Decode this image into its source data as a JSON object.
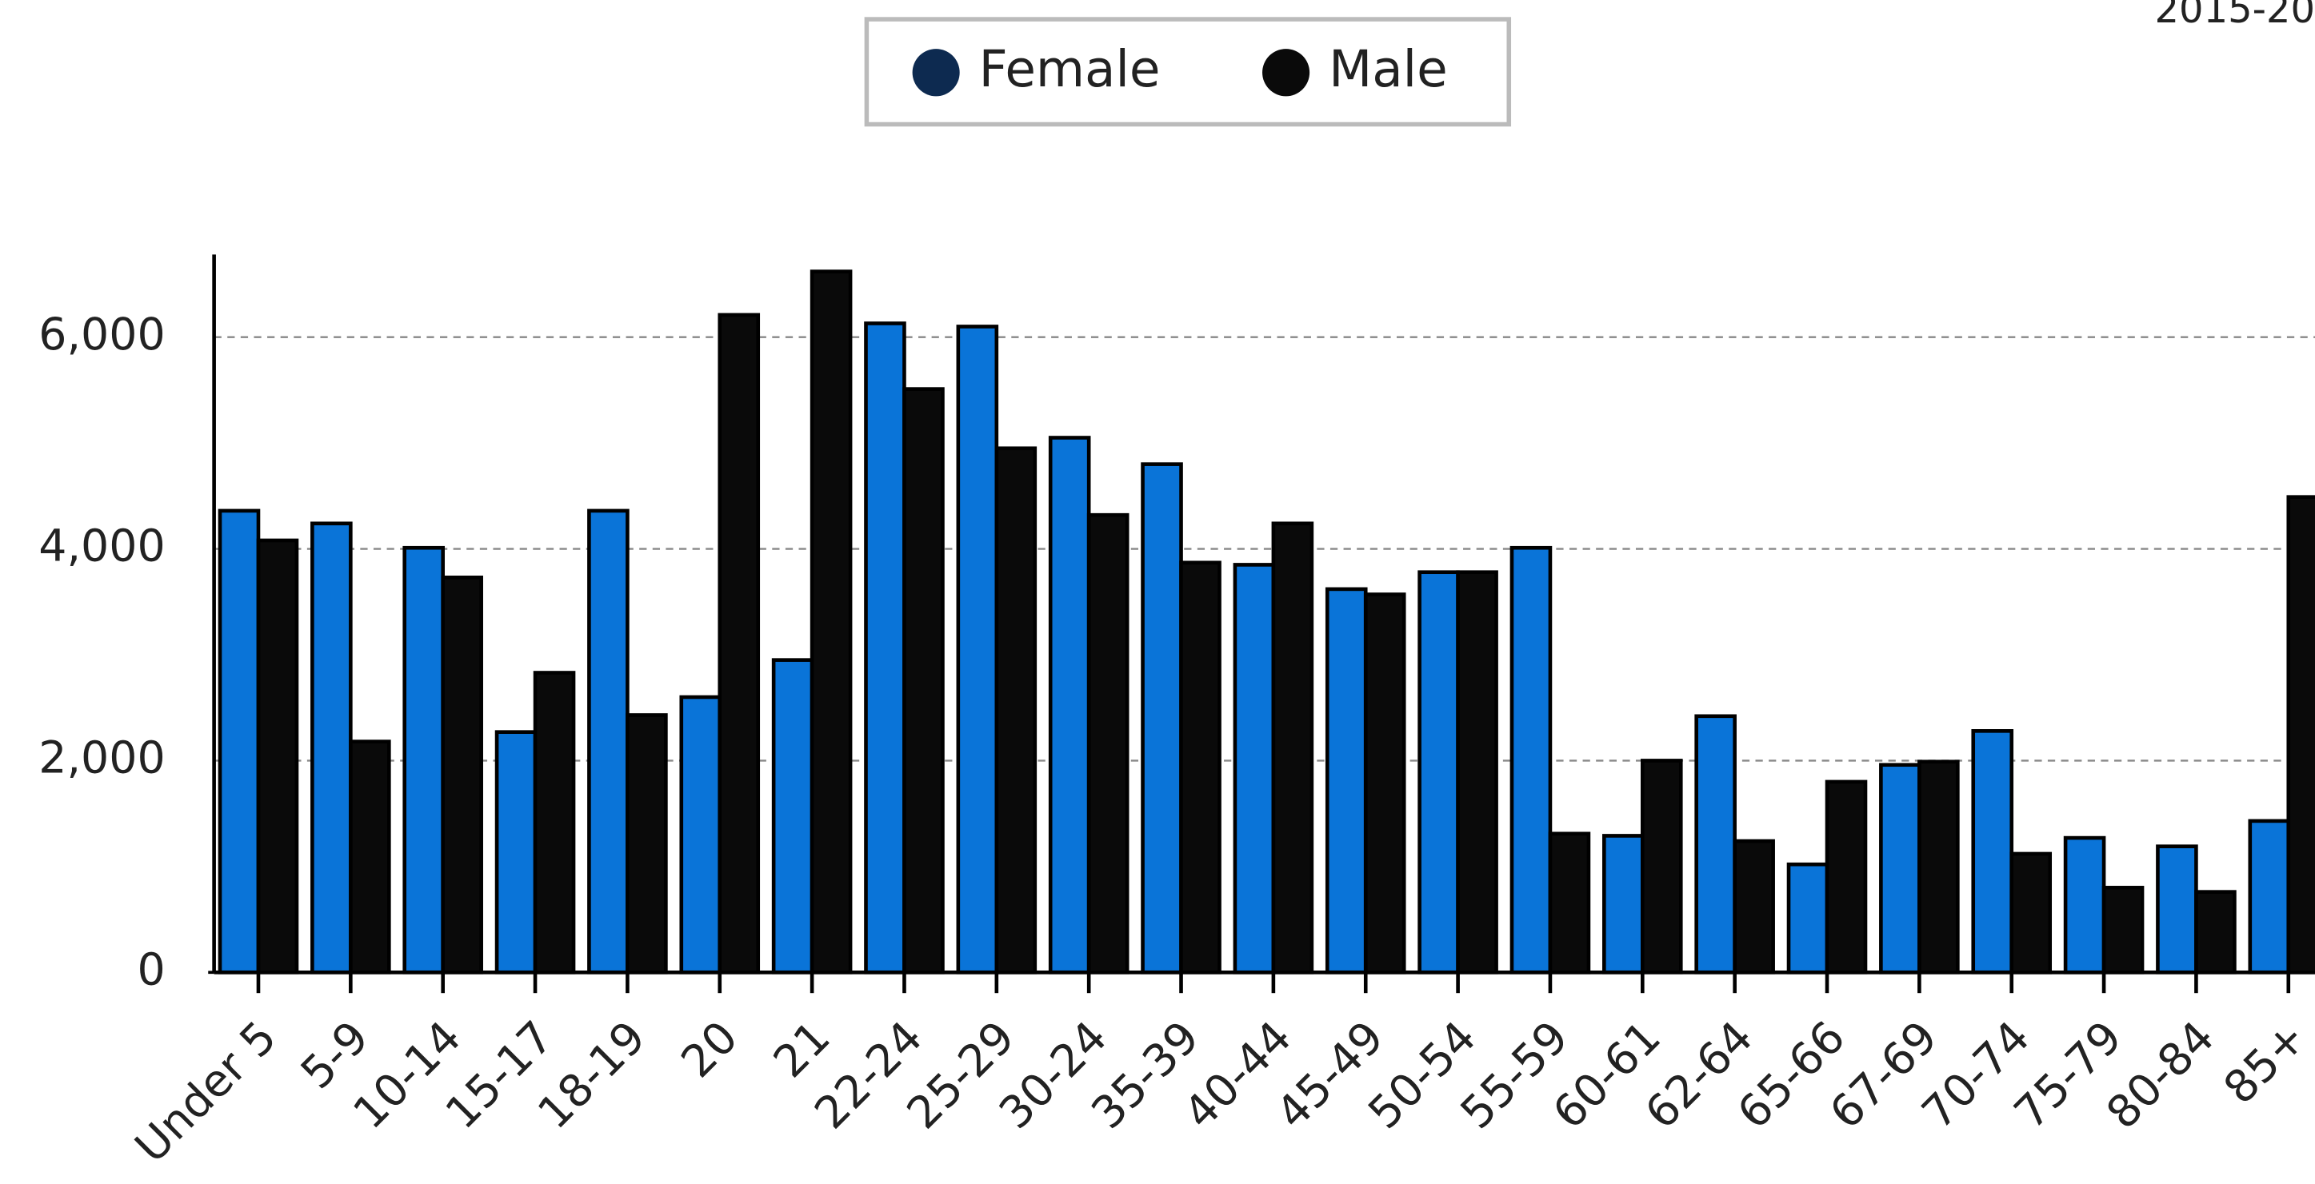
{
  "chart_data": {
    "type": "bar",
    "subtitle": "2015-20",
    "categories": [
      "Under 5",
      "5-9",
      "10-14",
      "15-17",
      "18-19",
      "20",
      "21",
      "22-24",
      "25-29",
      "30-24",
      "35-39",
      "40-44",
      "45-49",
      "50-54",
      "55-59",
      "60-61",
      "62-64",
      "65-66",
      "67-69",
      "70-74",
      "75-79",
      "80-84",
      "85+"
    ],
    "series": [
      {
        "name": "Female",
        "color": "#0a74d8",
        "values": [
          4360,
          4240,
          4010,
          2270,
          4360,
          2600,
          2950,
          6130,
          6100,
          5050,
          4800,
          3850,
          3620,
          3780,
          4010,
          1290,
          2420,
          1020,
          1960,
          2280,
          1270,
          1190,
          1430
        ]
      },
      {
        "name": "Male",
        "color": "#0a0a0a",
        "values": [
          4080,
          2180,
          3730,
          2830,
          2430,
          6210,
          6620,
          5510,
          4950,
          4320,
          3870,
          4240,
          3570,
          3780,
          1310,
          2000,
          1240,
          1800,
          1990,
          1120,
          800,
          760,
          4490
        ]
      }
    ],
    "ylim": [
      0,
      6780
    ],
    "yticks": [
      0,
      {
        "value": 2000,
        "label": "2,000"
      },
      {
        "value": 4000,
        "label": "4,000"
      },
      {
        "value": 6000,
        "label": "6,000"
      }
    ],
    "grid": true,
    "legend": "top"
  }
}
